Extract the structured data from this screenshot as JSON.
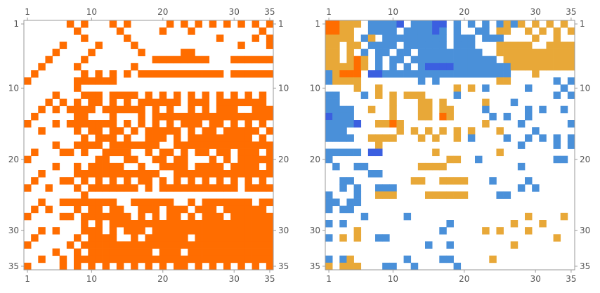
{
  "chart_data": [
    {
      "type": "heatmap",
      "name": "binary matrix plot",
      "rows": 35,
      "cols": 35,
      "x_ticks": [
        "1",
        "10",
        "20",
        "30",
        "35"
      ],
      "y_ticks": [
        "1",
        "10",
        "20",
        "30",
        "35"
      ],
      "tick_positions": [
        1,
        10,
        20,
        30,
        35
      ],
      "colors": {
        "1": "#ff6d00"
      },
      "matrix": [
        "00000010100010100000101010101010101",
        "00000001000001000001000100000000010",
        "00000000100000100000000000010000101",
        "00000100001000010000000000000010001",
        "00001000010000001000001100000000000",
        "00010000100000000011111111000111111",
        "00100001000000010000000000000000000",
        "01000000101010101111111111110111111",
        "10000001111110000000000000000000000",
        "00000001000000000000000000000000000",
        "00001000111011110101010101010101010",
        "00010101011010101111110111011111110",
        "00101011110111111010100101011100111",
        "01000001100010001011111111111111111",
        "10001011111110101010101110110101010",
        "00100001011011010111110101101111101",
        "00000000101110100111010111111111010",
        "00001001111011111110011111111111111",
        "01000110100111100101101011011011101",
        "10000000001100110011011000101011111",
        "00001001011111001001111011110111101",
        "00100001111111111110011111111111111",
        "01000110101010101101010101010101010",
        "10010001011111110101111111111101111",
        "00000000100000000000000000000000000",
        "00100111111110011111100101111111011",
        "01010001011011001110111011101111110",
        "10000110111111101010110101110111111",
        "00000000101011111111111111111111111",
        "00101000111010111011111111111111111",
        "01000001011110010111111011111111111",
        "10000010111111111111111111111111111",
        "00001001011111111101110111111111111",
        "00100101111111111111111111111111111",
        "10000101010101010101011010101010101"
      ]
    },
    {
      "type": "heatmap",
      "name": "multi-valued matrix plot",
      "rows": 35,
      "cols": 35,
      "x_ticks": [
        "1",
        "10",
        "20",
        "30",
        "35"
      ],
      "y_ticks": [
        "1",
        "10",
        "20",
        "30",
        "35"
      ],
      "tick_positions": [
        1,
        10,
        20,
        30,
        35
      ],
      "colors": {
        "1": "#ff6d00",
        "2": "#e8a838",
        "3": "#4a90d9",
        "4": "#3b5fe0"
      },
      "matrix": [
        "11222033334033344030303032320202020",
        "11220033330333343030033022002020202",
        "22220320333333333033303330000200200",
        "22022033330333333033300022222002222",
        "22020303303303333333330022222222222",
        "22021203033033333333333302222222222",
        "22221203030303444433333333222222222",
        "32111044333333333333333333000200000",
        "32222000000003030000000022000000303",
        "00002002000000000020203000003000030",
        "33000302020222000030000000000000303",
        "33000000020002202000002000300000000",
        "33330020020002202200003000003030030",
        "43330000020002201200000303003000000",
        "33334002212000000000002000030000003",
        "33300000002020202020200020000300000",
        "33330022220002020020300003003030303",
        "00000002000000000000000000030000303",
        "33333044000000020000000020000000000",
        "30000000000000000220030000000000330",
        "03003300000002222000000000030000000",
        "00000033000000000000000000000000000",
        "00330000000022002222000300003000000",
        "00303003330000000000000000030300000",
        "30003002220000222222000033000000000",
        "33033000000000000000000000000000000",
        "30330000000000000000000000000000000",
        "00000300000300000000000000002000020",
        "30300000000000000300000000200020000",
        "00002000000000003000002020002000000",
        "30202003300000000000000000000000200",
        "00000000000000300300000000200000000",
        "00000000000000000000000000000000000",
        "30320000000300003300000200000000000",
        "20222000330030000030000000000000000"
      ]
    }
  ]
}
